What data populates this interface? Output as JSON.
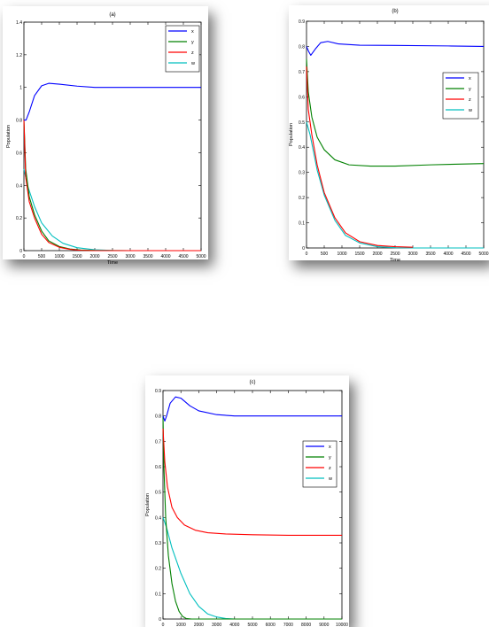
{
  "chart_data": [
    {
      "type": "line",
      "title": "(a)",
      "xlabel": "Time",
      "ylabel": "Population",
      "xlim": [
        0,
        5000
      ],
      "ylim": [
        0,
        1.4
      ],
      "xticks": [
        0,
        500,
        1000,
        1500,
        2000,
        2500,
        3000,
        3500,
        4000,
        4500,
        5000
      ],
      "yticks": [
        0,
        0.2,
        0.4,
        0.6,
        0.8,
        1,
        1.2,
        1.4
      ],
      "legend_position": "top-right",
      "series": [
        {
          "name": "x",
          "color": "#0000ff",
          "points": [
            [
              0,
              0.8
            ],
            [
              60,
              0.8
            ],
            [
              150,
              0.85
            ],
            [
              300,
              0.95
            ],
            [
              500,
              1.01
            ],
            [
              700,
              1.025
            ],
            [
              1000,
              1.02
            ],
            [
              1500,
              1.008
            ],
            [
              2000,
              1.0
            ],
            [
              3000,
              1.0
            ],
            [
              4000,
              1.0
            ],
            [
              5000,
              1.0
            ]
          ]
        },
        {
          "name": "y",
          "color": "#008000",
          "points": [
            [
              0,
              0.8
            ],
            [
              50,
              0.5
            ],
            [
              150,
              0.33
            ],
            [
              300,
              0.22
            ],
            [
              500,
              0.12
            ],
            [
              700,
              0.06
            ],
            [
              1000,
              0.025
            ],
            [
              1300,
              0.01
            ],
            [
              1600,
              0.004
            ],
            [
              2000,
              0.001
            ],
            [
              3000,
              0
            ],
            [
              5000,
              0
            ]
          ]
        },
        {
          "name": "z",
          "color": "#ff0000",
          "points": [
            [
              0,
              0.8
            ],
            [
              50,
              0.45
            ],
            [
              150,
              0.3
            ],
            [
              300,
              0.2
            ],
            [
              500,
              0.1
            ],
            [
              700,
              0.05
            ],
            [
              1000,
              0.02
            ],
            [
              1300,
              0.008
            ],
            [
              1600,
              0.002
            ],
            [
              2000,
              0
            ],
            [
              5000,
              0
            ]
          ]
        },
        {
          "name": "w",
          "color": "#00bfbf",
          "points": [
            [
              0,
              0.5
            ],
            [
              100,
              0.4
            ],
            [
              300,
              0.27
            ],
            [
              500,
              0.17
            ],
            [
              800,
              0.09
            ],
            [
              1100,
              0.045
            ],
            [
              1500,
              0.018
            ],
            [
              2000,
              0.005
            ],
            [
              2500,
              0.001
            ],
            [
              3000,
              0
            ],
            [
              5000,
              0
            ]
          ]
        }
      ]
    },
    {
      "type": "line",
      "title": "(b)",
      "xlabel": "Time",
      "ylabel": "Population",
      "xlim": [
        0,
        5000
      ],
      "ylim": [
        0,
        0.9
      ],
      "xticks": [
        0,
        500,
        1000,
        1500,
        2000,
        2500,
        3000,
        3500,
        4000,
        4500,
        5000
      ],
      "yticks": [
        0,
        0.1,
        0.2,
        0.3,
        0.4,
        0.5,
        0.6,
        0.7,
        0.8,
        0.9
      ],
      "legend_position": "right",
      "series": [
        {
          "name": "x",
          "color": "#0000ff",
          "points": [
            [
              0,
              0.8
            ],
            [
              60,
              0.78
            ],
            [
              120,
              0.765
            ],
            [
              250,
              0.79
            ],
            [
              400,
              0.815
            ],
            [
              600,
              0.82
            ],
            [
              900,
              0.81
            ],
            [
              1500,
              0.805
            ],
            [
              2500,
              0.804
            ],
            [
              4000,
              0.802
            ],
            [
              5000,
              0.8
            ]
          ]
        },
        {
          "name": "y",
          "color": "#008000",
          "points": [
            [
              0,
              0.75
            ],
            [
              50,
              0.62
            ],
            [
              150,
              0.52
            ],
            [
              300,
              0.44
            ],
            [
              500,
              0.39
            ],
            [
              800,
              0.35
            ],
            [
              1200,
              0.33
            ],
            [
              1800,
              0.325
            ],
            [
              2500,
              0.325
            ],
            [
              3500,
              0.33
            ],
            [
              5000,
              0.335
            ]
          ]
        },
        {
          "name": "z",
          "color": "#ff0000",
          "points": [
            [
              0,
              0.72
            ],
            [
              50,
              0.55
            ],
            [
              150,
              0.45
            ],
            [
              300,
              0.33
            ],
            [
              500,
              0.22
            ],
            [
              800,
              0.12
            ],
            [
              1100,
              0.06
            ],
            [
              1500,
              0.025
            ],
            [
              2000,
              0.01
            ],
            [
              2500,
              0.005
            ],
            [
              3000,
              0.003
            ]
          ]
        },
        {
          "name": "w",
          "color": "#00bfbf",
          "points": [
            [
              0,
              0.5
            ],
            [
              100,
              0.45
            ],
            [
              300,
              0.31
            ],
            [
              500,
              0.21
            ],
            [
              800,
              0.11
            ],
            [
              1100,
              0.05
            ],
            [
              1500,
              0.02
            ],
            [
              2000,
              0.005
            ],
            [
              2500,
              0.001
            ],
            [
              3000,
              0
            ],
            [
              5000,
              0
            ]
          ]
        }
      ]
    },
    {
      "type": "line",
      "title": "(c)",
      "xlabel": "Time",
      "ylabel": "Population",
      "xlim": [
        0,
        10000
      ],
      "ylim": [
        0,
        0.9
      ],
      "xticks": [
        0,
        1000,
        2000,
        3000,
        4000,
        5000,
        6000,
        7000,
        8000,
        9000,
        10000
      ],
      "yticks": [
        0,
        0.1,
        0.2,
        0.3,
        0.4,
        0.5,
        0.6,
        0.7,
        0.8,
        0.9
      ],
      "legend_position": "right",
      "series": [
        {
          "name": "x",
          "color": "#0000ff",
          "points": [
            [
              0,
              0.8
            ],
            [
              100,
              0.78
            ],
            [
              200,
              0.8
            ],
            [
              400,
              0.85
            ],
            [
              700,
              0.875
            ],
            [
              1000,
              0.87
            ],
            [
              1500,
              0.84
            ],
            [
              2000,
              0.82
            ],
            [
              3000,
              0.805
            ],
            [
              4000,
              0.8
            ],
            [
              6000,
              0.8
            ],
            [
              10000,
              0.8
            ]
          ]
        },
        {
          "name": "y",
          "color": "#008000",
          "points": [
            [
              0,
              0.8
            ],
            [
              50,
              0.6
            ],
            [
              150,
              0.4
            ],
            [
              300,
              0.25
            ],
            [
              500,
              0.14
            ],
            [
              700,
              0.07
            ],
            [
              900,
              0.03
            ],
            [
              1100,
              0.01
            ],
            [
              1300,
              0.002
            ],
            [
              1600,
              0
            ],
            [
              10000,
              0
            ]
          ]
        },
        {
          "name": "z",
          "color": "#ff0000",
          "points": [
            [
              0,
              0.75
            ],
            [
              100,
              0.62
            ],
            [
              250,
              0.52
            ],
            [
              500,
              0.44
            ],
            [
              800,
              0.4
            ],
            [
              1200,
              0.37
            ],
            [
              1800,
              0.35
            ],
            [
              2500,
              0.34
            ],
            [
              3500,
              0.335
            ],
            [
              5000,
              0.332
            ],
            [
              7000,
              0.33
            ],
            [
              10000,
              0.33
            ]
          ]
        },
        {
          "name": "w",
          "color": "#00bfbf",
          "points": [
            [
              0,
              0.4
            ],
            [
              200,
              0.36
            ],
            [
              500,
              0.28
            ],
            [
              1000,
              0.18
            ],
            [
              1500,
              0.1
            ],
            [
              2000,
              0.05
            ],
            [
              2500,
              0.02
            ],
            [
              3000,
              0.008
            ],
            [
              3500,
              0.002
            ],
            [
              4000,
              0
            ],
            [
              10000,
              0
            ]
          ]
        }
      ]
    }
  ]
}
